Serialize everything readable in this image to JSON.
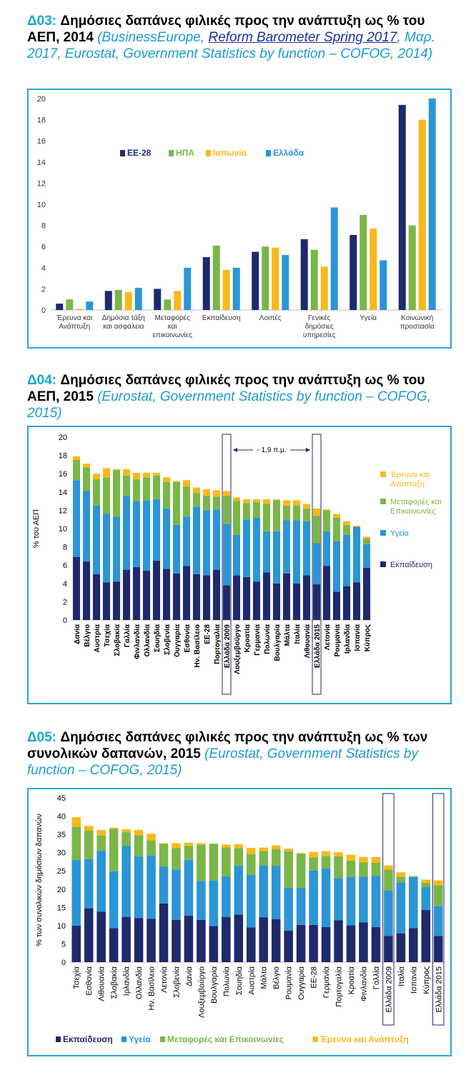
{
  "colors": {
    "eu": "#1f2a6b",
    "us": "#7ab648",
    "jp": "#f9b81b",
    "gr": "#2c95d6",
    "edu": "#1f2a6b",
    "health": "#2c95d6",
    "transport": "#7ab648",
    "rnd": "#f9b81b",
    "border": "#2da4d8",
    "title_code": "#14a9c9",
    "source": "#1a9ad6"
  },
  "headers": [
    {
      "code": "Δ03:",
      "title": "Δημόσιες δαπάνες φιλικές προς την ανάπτυξη ως % του ΑΕΠ, 2014",
      "src_pre": "(BusinessEurope, ",
      "src_link": "Reform Barometer Spring 2017",
      "src_post": ", Μαρ. 2017, Eurostat, Government Statistics by function – COFOG, 2014)"
    },
    {
      "code": "Δ04:",
      "title": "Δημόσιες δαπάνες φιλικές προς την ανάπτυξη ως % του ΑΕΠ, 2015",
      "src_pre": "(Eurostat, Government Statistics by function – COFOG, 2015)",
      "src_link": "",
      "src_post": ""
    },
    {
      "code": "Δ05:",
      "title": "Δημόσιες δαπάνες φιλικές προς την ανάπτυξη ως % των συνολικών δαπανών, 2015",
      "src_pre": "(Eurostat, Government Statistics by function – COFOG, 2015)",
      "src_link": "",
      "src_post": ""
    }
  ],
  "chart_data": [
    {
      "type": "bar",
      "categories": [
        "Έρευνα και Ανάπτυξη",
        "Δημόσια τάξη και ασφάλεια",
        "Μεταφορές και επικοινωνίες",
        "Εκπαίδευση",
        "Λοιπές",
        "Γενικές δημόσιες υπηρεσίες",
        "Υγεία",
        "Κοινωνική προστασία"
      ],
      "series": [
        {
          "name": "ΕΕ-28",
          "values": [
            0.6,
            1.8,
            2.0,
            5.0,
            5.5,
            6.7,
            7.1,
            19.4
          ]
        },
        {
          "name": "ΗΠΑ",
          "values": [
            1.0,
            1.9,
            1.0,
            6.1,
            6.0,
            5.7,
            9.0,
            8.0
          ]
        },
        {
          "name": "Ιαπωνία",
          "values": [
            0.1,
            1.7,
            1.8,
            3.8,
            5.9,
            4.1,
            7.7,
            18.0
          ]
        },
        {
          "name": "Ελλάδα",
          "values": [
            0.8,
            2.1,
            4.0,
            4.0,
            5.2,
            9.7,
            4.7,
            20.0
          ]
        }
      ],
      "ylim": [
        0,
        20
      ],
      "yticks": [
        "0",
        "2",
        "4",
        "6",
        "8",
        "10",
        "12",
        "14",
        "16",
        "18",
        "20"
      ],
      "legend": "top-left",
      "xlabel": "",
      "ylabel": ""
    },
    {
      "type": "bar",
      "stacked": true,
      "ylabel": "% του ΑΕΠ",
      "ylim": [
        0,
        20
      ],
      "yticks": [
        "0",
        "2",
        "4",
        "6",
        "8",
        "10",
        "12",
        "14",
        "16",
        "18",
        "20"
      ],
      "annotation": "- 1,9 π.μ.",
      "highlighted": [
        "Ελλάδα 2009",
        "Ελλάδα 2015"
      ],
      "categories": [
        "Δανία",
        "Βέλγιο",
        "Αυστρία",
        "Τσεχία",
        "Σλοβακία",
        "Γαλλία",
        "Φινλανδία",
        "Ολλανδία",
        "Σουηδία",
        "Σλοβενία",
        "Ουγγαρία",
        "Εσθονία",
        "Ην. Βασίλειο",
        "ΕΕ-28",
        "Πορτογαλία",
        "Ελλάδα 2009",
        "Λουξεμβούργο",
        "Κροατία",
        "Γερμανία",
        "Πολωνία",
        "Βουλγαρία",
        "Μάλτα",
        "Ιταλία",
        "Λιθουανία",
        "Ελλάδα 2015",
        "Λετονία",
        "Ρουμανία",
        "Ιρλανδία",
        "Ισπανία",
        "Κύπρος"
      ],
      "series": [
        {
          "name": "Εκπαίδευση",
          "values": [
            6.9,
            6.4,
            5.0,
            4.1,
            4.2,
            5.5,
            5.8,
            5.4,
            6.5,
            5.6,
            5.1,
            5.9,
            5.0,
            4.9,
            5.5,
            3.8,
            4.9,
            4.7,
            4.2,
            5.2,
            4.0,
            5.1,
            4.0,
            4.9,
            3.9,
            5.9,
            3.1,
            3.7,
            4.1,
            5.7
          ]
        },
        {
          "name": "Υγεία",
          "values": [
            8.4,
            7.7,
            7.5,
            7.5,
            7.1,
            8.1,
            7.2,
            7.7,
            6.7,
            6.6,
            5.3,
            5.4,
            7.4,
            7.1,
            6.6,
            6.7,
            4.4,
            6.3,
            7.0,
            4.5,
            5.7,
            5.8,
            6.9,
            5.9,
            4.5,
            3.8,
            5.5,
            5.6,
            6.1,
            2.6
          ]
        },
        {
          "name": "Μεταφορές και Επικοινωνίες",
          "values": [
            2.2,
            2.6,
            2.9,
            4.0,
            5.1,
            2.2,
            2.4,
            2.5,
            2.6,
            2.9,
            4.7,
            3.3,
            1.5,
            1.6,
            1.4,
            3.1,
            3.7,
            1.8,
            1.7,
            3.0,
            3.4,
            1.6,
            1.6,
            1.4,
            3.0,
            2.3,
            2.6,
            1.1,
            0.0,
            0.6
          ]
        },
        {
          "name": "Έρευνα και Ανάπτυξη",
          "values": [
            0.4,
            0.4,
            0.6,
            1.0,
            0.1,
            0.7,
            0.7,
            0.5,
            0.3,
            0.5,
            0.1,
            0.7,
            0.6,
            0.7,
            0.7,
            0.5,
            0.4,
            0.4,
            0.3,
            0.5,
            0.1,
            0.6,
            0.6,
            0.5,
            0.8,
            0.1,
            0.4,
            0.4,
            0.1,
            0.2
          ]
        }
      ],
      "legend": "right"
    },
    {
      "type": "bar",
      "stacked": true,
      "ylabel": "% των συνολικών δημόσιων δαπανών",
      "ylim": [
        0,
        45
      ],
      "yticks": [
        "0",
        "5",
        "10",
        "15",
        "20",
        "25",
        "30",
        "35",
        "40",
        "45"
      ],
      "highlighted": [
        "Ελλάδα 2009",
        "Ελλάδα 2015"
      ],
      "categories": [
        "Τσεχία",
        "Εσθονία",
        "Λιθουανία",
        "Σλοβακία",
        "Ιρλανδία",
        "Ολλανδία",
        "Ην. Βασίλειο",
        "Λετονία",
        "Σλοβενία",
        "Δανία",
        "Λουξεμβούργο",
        "Βουλγαρία",
        "Πολωνία",
        "Σουηδία",
        "Αυστρία",
        "Μάλτα",
        "Βέλγιο",
        "Ρουμανία",
        "Ουγγαρία",
        "ΕΕ-28",
        "Γερμανία",
        "Πορτογαλία",
        "Κροατία",
        "Φινλανδία",
        "Γαλλία",
        "Ελλάδα 2009",
        "Ιταλία",
        "Ισπανία",
        "Κύπρος",
        "Ελλάδα 2015"
      ],
      "series": [
        {
          "name": "Εκπαίδευση",
          "values": [
            10.0,
            14.8,
            13.8,
            9.3,
            12.4,
            12.1,
            11.9,
            16.1,
            11.6,
            12.7,
            11.6,
            9.9,
            12.4,
            13.0,
            9.5,
            12.3,
            11.8,
            8.6,
            10.2,
            10.2,
            9.6,
            11.5,
            10.1,
            10.9,
            9.6,
            7.2,
            7.9,
            9.3,
            14.3,
            7.2
          ]
        },
        {
          "name": "Υγεία",
          "values": [
            18.0,
            13.4,
            16.7,
            15.6,
            19.4,
            16.9,
            17.4,
            10.1,
            13.8,
            15.3,
            10.6,
            12.4,
            11.1,
            13.4,
            14.5,
            14.2,
            14.6,
            11.8,
            10.2,
            14.9,
            16.1,
            11.5,
            13.3,
            12.5,
            14.0,
            12.5,
            13.9,
            14.0,
            6.3,
            8.2
          ]
        },
        {
          "name": "Μεταφορές και Επικοινωνίες",
          "values": [
            9.1,
            7.8,
            4.2,
            11.6,
            3.8,
            5.8,
            4.1,
            6.2,
            5.8,
            3.8,
            9.9,
            10.1,
            7.9,
            4.8,
            5.6,
            3.9,
            4.5,
            10.0,
            9.3,
            3.6,
            3.4,
            6.0,
            4.4,
            3.9,
            3.6,
            5.7,
            1.6,
            0.2,
            1.2,
            5.7
          ]
        },
        {
          "name": "Έρευνα και Ανάπτυξη",
          "values": [
            2.6,
            1.3,
            1.5,
            0.3,
            0.8,
            1.4,
            1.8,
            0.2,
            1.4,
            0.9,
            0.5,
            0.1,
            0.8,
            1.1,
            1.7,
            1.0,
            1.1,
            0.7,
            0.2,
            1.5,
            1.3,
            1.1,
            1.6,
            1.5,
            1.6,
            1.1,
            1.2,
            0.1,
            0.8,
            1.3
          ]
        }
      ],
      "legend": "bottom"
    }
  ]
}
